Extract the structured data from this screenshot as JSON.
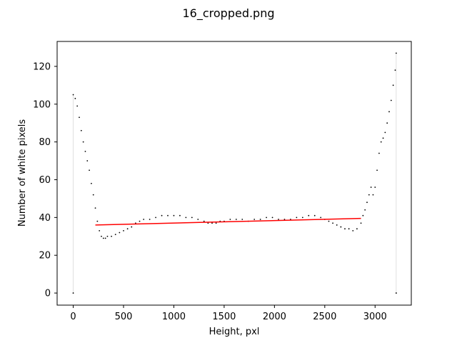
{
  "chart_data": {
    "type": "scatter",
    "title": "16_cropped.png",
    "xlabel": "Height, pxl",
    "ylabel": "Number of white pixels",
    "xlim": [
      -160,
      3360
    ],
    "ylim": [
      -6.4,
      133.2
    ],
    "xticks": [
      0,
      500,
      1000,
      1500,
      2000,
      2500,
      3000
    ],
    "yticks": [
      0,
      20,
      40,
      60,
      80,
      100,
      120
    ],
    "grid": false,
    "series": [
      {
        "type": "scatter",
        "color": "#000000",
        "points": [
          [
            0,
            0
          ],
          [
            0,
            105
          ],
          [
            20,
            103
          ],
          [
            40,
            99
          ],
          [
            60,
            93
          ],
          [
            80,
            86
          ],
          [
            100,
            80
          ],
          [
            120,
            75
          ],
          [
            140,
            70
          ],
          [
            160,
            65
          ],
          [
            180,
            58
          ],
          [
            200,
            52
          ],
          [
            220,
            45
          ],
          [
            240,
            38
          ],
          [
            260,
            33
          ],
          [
            280,
            30
          ],
          [
            300,
            29
          ],
          [
            320,
            29
          ],
          [
            340,
            30
          ],
          [
            380,
            30
          ],
          [
            420,
            31
          ],
          [
            460,
            32
          ],
          [
            500,
            33
          ],
          [
            540,
            34
          ],
          [
            580,
            35
          ],
          [
            620,
            37
          ],
          [
            660,
            38
          ],
          [
            700,
            39
          ],
          [
            760,
            39
          ],
          [
            820,
            40
          ],
          [
            880,
            41
          ],
          [
            940,
            41
          ],
          [
            1000,
            41
          ],
          [
            1060,
            41
          ],
          [
            1120,
            40
          ],
          [
            1180,
            40
          ],
          [
            1240,
            39
          ],
          [
            1300,
            38
          ],
          [
            1340,
            37
          ],
          [
            1380,
            37
          ],
          [
            1420,
            37
          ],
          [
            1460,
            38
          ],
          [
            1500,
            38
          ],
          [
            1560,
            39
          ],
          [
            1620,
            39
          ],
          [
            1680,
            39
          ],
          [
            1740,
            38
          ],
          [
            1800,
            39
          ],
          [
            1860,
            39
          ],
          [
            1920,
            40
          ],
          [
            1980,
            40
          ],
          [
            2040,
            39
          ],
          [
            2100,
            39
          ],
          [
            2160,
            39
          ],
          [
            2220,
            40
          ],
          [
            2280,
            40
          ],
          [
            2340,
            41
          ],
          [
            2400,
            41
          ],
          [
            2460,
            40
          ],
          [
            2500,
            39
          ],
          [
            2540,
            38
          ],
          [
            2580,
            37
          ],
          [
            2620,
            36
          ],
          [
            2660,
            35
          ],
          [
            2700,
            34
          ],
          [
            2740,
            34
          ],
          [
            2780,
            33
          ],
          [
            2820,
            34
          ],
          [
            2860,
            37
          ],
          [
            2880,
            41
          ],
          [
            2900,
            44
          ],
          [
            2920,
            48
          ],
          [
            2940,
            52
          ],
          [
            2960,
            56
          ],
          [
            2980,
            52
          ],
          [
            3000,
            56
          ],
          [
            3020,
            65
          ],
          [
            3040,
            74
          ],
          [
            3060,
            80
          ],
          [
            3080,
            82
          ],
          [
            3100,
            85
          ],
          [
            3120,
            90
          ],
          [
            3140,
            96
          ],
          [
            3160,
            102
          ],
          [
            3180,
            110
          ],
          [
            3200,
            118
          ],
          [
            3210,
            127
          ],
          [
            3210,
            0
          ]
        ]
      },
      {
        "type": "line",
        "color": "#ff0000",
        "points": [
          [
            220,
            36
          ],
          [
            2860,
            39.5
          ]
        ]
      },
      {
        "type": "line",
        "color": "#d9d9d9",
        "points": [
          [
            0,
            0
          ],
          [
            0,
            105
          ]
        ]
      },
      {
        "type": "line",
        "color": "#d9d9d9",
        "points": [
          [
            3210,
            0
          ],
          [
            3210,
            127
          ]
        ]
      }
    ]
  }
}
